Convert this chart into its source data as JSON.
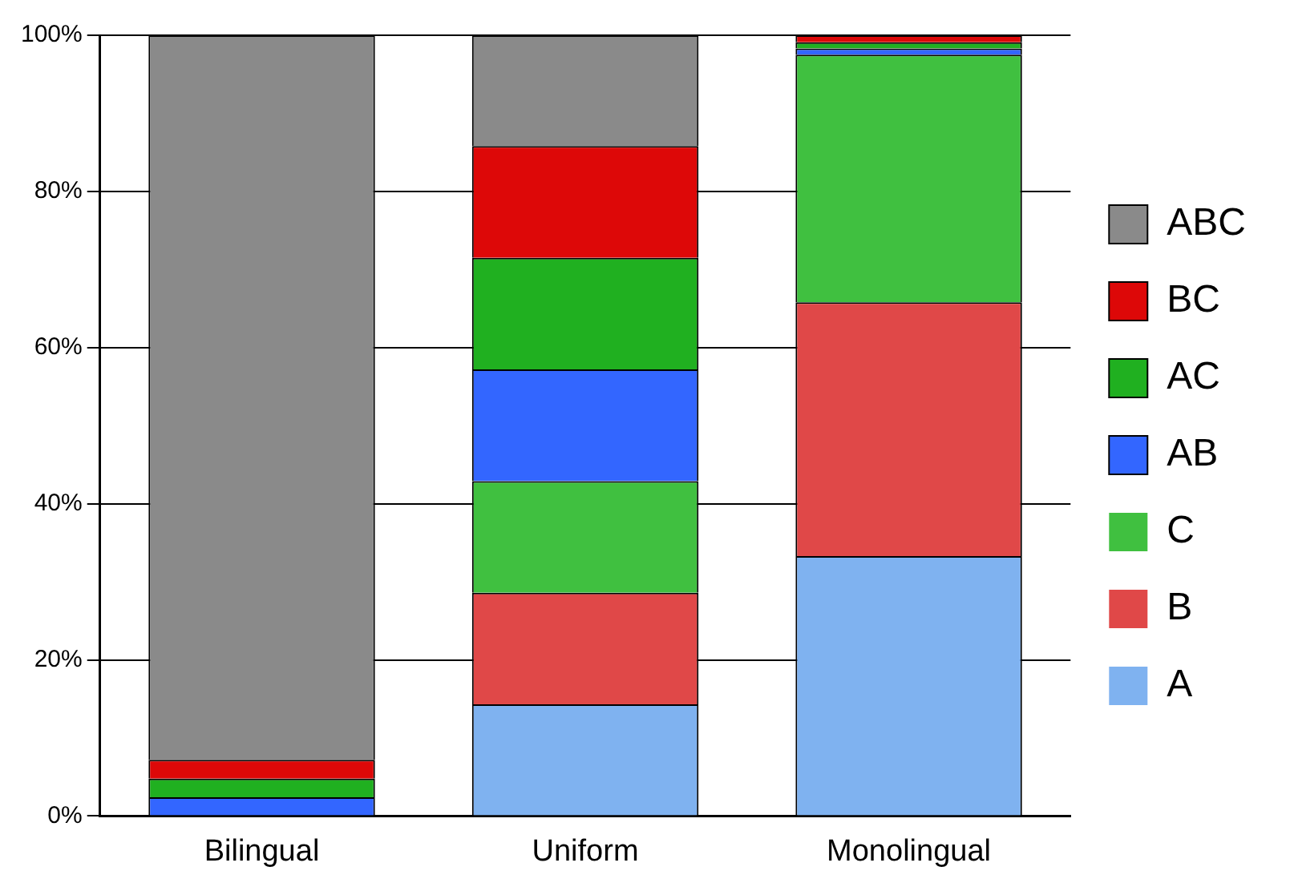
{
  "chart_data": {
    "type": "bar",
    "stacked": true,
    "categories": [
      "Bilingual",
      "Uniform",
      "Monolingual"
    ],
    "series": [
      {
        "name": "A",
        "color": "#7fb2f0",
        "values": [
          0,
          14.3,
          33.3
        ]
      },
      {
        "name": "B",
        "color": "#e04848",
        "values": [
          0,
          14.3,
          32.5
        ]
      },
      {
        "name": "C",
        "color": "#40c040",
        "values": [
          0,
          14.3,
          31.7
        ]
      },
      {
        "name": "AB",
        "color": "#3366ff",
        "values": [
          2.4,
          14.3,
          0.8
        ]
      },
      {
        "name": "AC",
        "color": "#20b020",
        "values": [
          2.4,
          14.3,
          0.8
        ]
      },
      {
        "name": "BC",
        "color": "#dd0808",
        "values": [
          2.4,
          14.3,
          0.9
        ]
      },
      {
        "name": "ABC",
        "color": "#8a8a8a",
        "values": [
          92.8,
          14.2,
          0
        ]
      }
    ],
    "ylim": [
      0,
      100
    ],
    "yticks": [
      {
        "value": 0,
        "label": "0%"
      },
      {
        "value": 20,
        "label": "20%"
      },
      {
        "value": 40,
        "label": "40%"
      },
      {
        "value": 60,
        "label": "60%"
      },
      {
        "value": 80,
        "label": "80%"
      },
      {
        "value": 100,
        "label": "100%"
      }
    ],
    "grid": "y",
    "legend": "right"
  }
}
